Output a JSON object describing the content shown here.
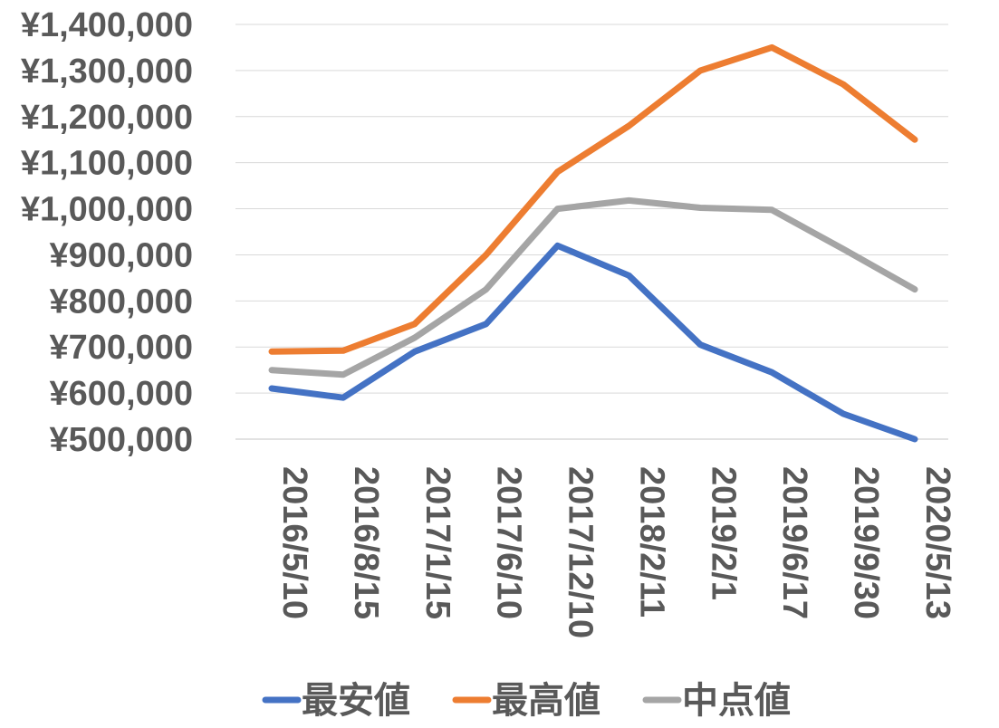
{
  "chart_data": {
    "type": "line",
    "categories": [
      "2016/5/10",
      "2016/8/15",
      "2017/1/15",
      "2017/6/10",
      "2017/12/10",
      "2018/2/11",
      "2019/2/1",
      "2019/6/17",
      "2019/9/30",
      "2020/5/13"
    ],
    "series": [
      {
        "name": "最安値",
        "color": "#4472C4",
        "values": [
          610000,
          590000,
          690000,
          750000,
          920000,
          855000,
          705000,
          645000,
          555000,
          500000
        ]
      },
      {
        "name": "最高値",
        "color": "#ED7D31",
        "values": [
          690000,
          692000,
          750000,
          900000,
          1080000,
          1180000,
          1300000,
          1350000,
          1270000,
          1150000
        ]
      },
      {
        "name": "中点値",
        "color": "#A5A5A5",
        "values": [
          650000,
          640000,
          720000,
          825000,
          1000000,
          1018000,
          1002000,
          997500,
          912500,
          825000
        ]
      }
    ],
    "yticks": [
      "¥1,400,000",
      "¥1,300,000",
      "¥1,200,000",
      "¥1,100,000",
      "¥1,000,000",
      "¥900,000",
      "¥800,000",
      "¥700,000",
      "¥600,000",
      "¥500,000"
    ],
    "ylim": [
      500000,
      1400000
    ],
    "ytick_step": 100000,
    "grid": true,
    "legend_position": "bottom",
    "title": "",
    "xlabel": "",
    "ylabel": ""
  }
}
